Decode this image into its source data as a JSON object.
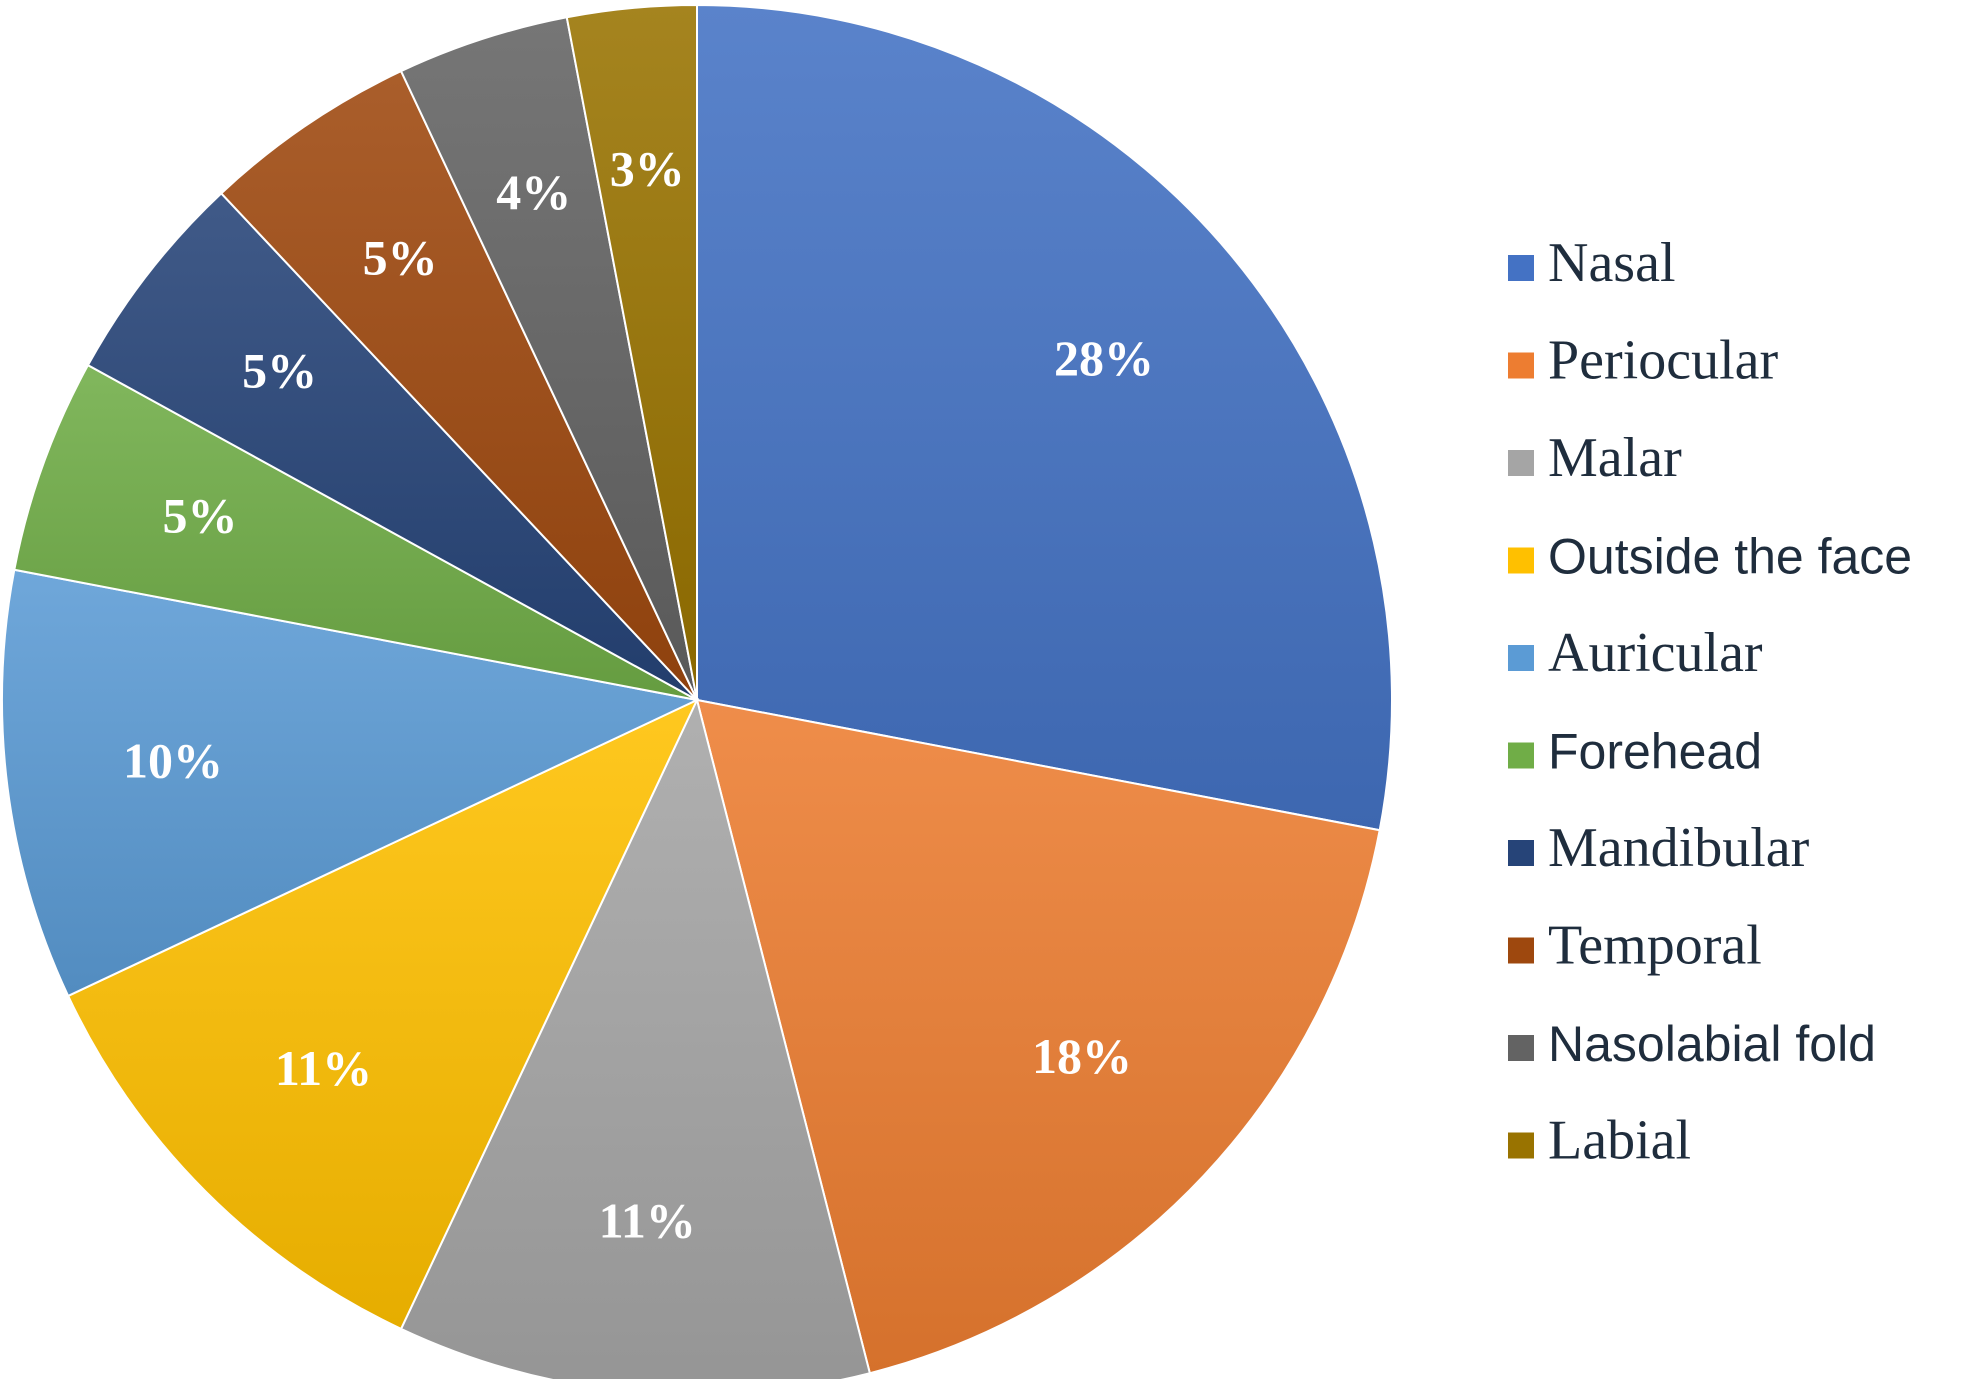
{
  "chart_data": {
    "type": "pie",
    "start": "top",
    "direction": "clockwise",
    "legend_position": "right",
    "slices": [
      {
        "label": "Nasal",
        "value": 28,
        "value_label": "28%",
        "color": "#4472c4",
        "legend_font": "serif"
      },
      {
        "label": "Periocular",
        "value": 18,
        "value_label": "18%",
        "color": "#ed7d31",
        "legend_font": "serif"
      },
      {
        "label": "Malar",
        "value": 11,
        "value_label": "11%",
        "color": "#a5a5a5",
        "legend_font": "serif"
      },
      {
        "label": "Outside the face",
        "value": 11,
        "value_label": "11%",
        "color": "#ffc000",
        "legend_font": "sans"
      },
      {
        "label": "Auricular",
        "value": 10,
        "value_label": "10%",
        "color": "#5b9bd5",
        "legend_font": "serif"
      },
      {
        "label": "Forehead",
        "value": 5,
        "value_label": "5%",
        "color": "#70ad47",
        "legend_font": "sans"
      },
      {
        "label": "Mandibular",
        "value": 5,
        "value_label": "5%",
        "color": "#264478",
        "legend_font": "serif"
      },
      {
        "label": "Temporal",
        "value": 5,
        "value_label": "5%",
        "color": "#9e480e",
        "legend_font": "serif"
      },
      {
        "label": "Nasolabial fold",
        "value": 4,
        "value_label": "4%",
        "color": "#636363",
        "legend_font": "sans"
      },
      {
        "label": "Labial",
        "value": 3,
        "value_label": "3%",
        "color": "#997300",
        "legend_font": "serif"
      }
    ]
  }
}
